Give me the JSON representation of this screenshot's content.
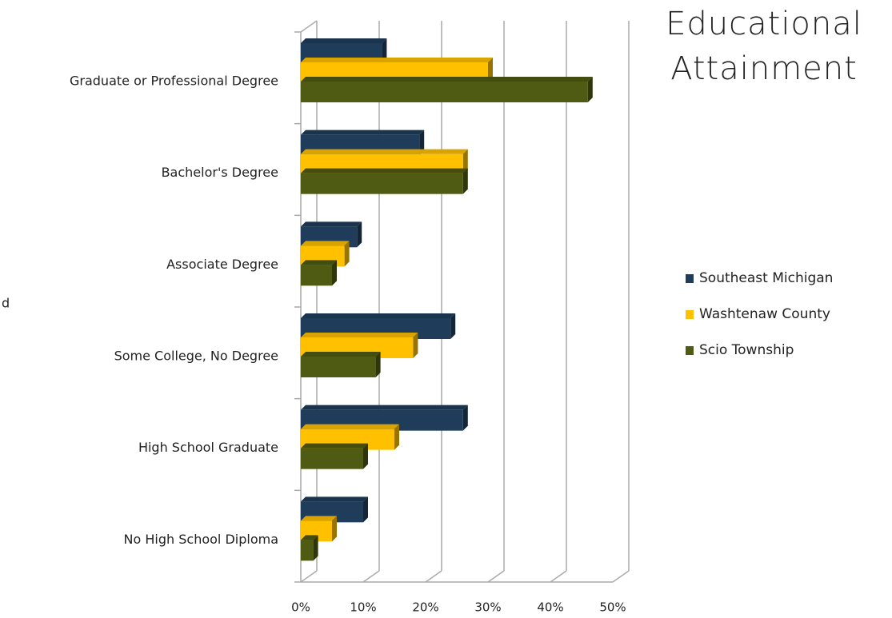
{
  "chart_data": {
    "type": "bar",
    "orientation": "horizontal",
    "title": "Educational Attainment",
    "annotation": "d",
    "categories": [
      "Graduate or Professional Degree",
      "Bachelor's Degree",
      "Associate Degree",
      "Some College, No Degree",
      "High School Graduate",
      "No High School Diploma"
    ],
    "series": [
      {
        "name": "Southeast Michigan",
        "color": "#1f3d5a",
        "values": [
          13,
          19,
          9,
          24,
          26,
          10
        ]
      },
      {
        "name": "Washtenaw County",
        "color": "#ffc000",
        "values": [
          30,
          26,
          7,
          18,
          15,
          5
        ]
      },
      {
        "name": "Scio Township",
        "color": "#4f5a12",
        "values": [
          46,
          26,
          5,
          12,
          10,
          2
        ]
      }
    ],
    "xlim": [
      0,
      50
    ],
    "xticks": [
      {
        "value": 0,
        "label": "0%"
      },
      {
        "value": 10,
        "label": "10%"
      },
      {
        "value": 20,
        "label": "20%"
      },
      {
        "value": 30,
        "label": "30%"
      },
      {
        "value": 40,
        "label": "40%"
      },
      {
        "value": 50,
        "label": "50%"
      }
    ],
    "grid": true,
    "legend": "right"
  }
}
